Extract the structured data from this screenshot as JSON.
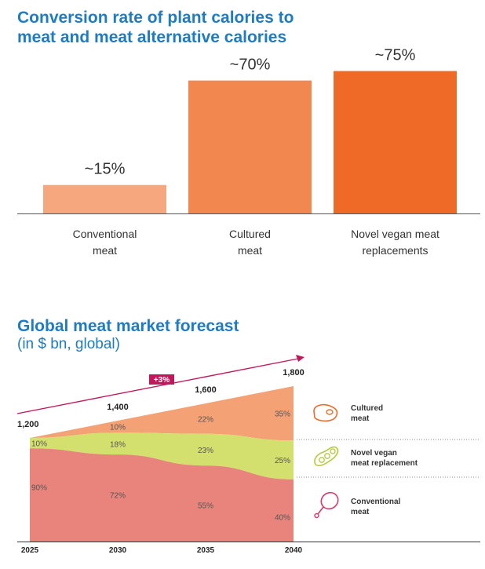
{
  "chart_data": [
    {
      "type": "bar",
      "title": "Conversion rate of plant calories to meat and meat alternative calories",
      "title_lines": [
        "Conversion rate of plant calories to",
        "meat and meat alternative calories"
      ],
      "categories": [
        "Conventional meat",
        "Cultured meat",
        "Novel vegan meat replacements"
      ],
      "category_lines": [
        [
          "Conventional",
          "meat"
        ],
        [
          "Cultured",
          "meat"
        ],
        [
          "Novel vegan meat",
          "replacements"
        ]
      ],
      "values": [
        15,
        70,
        75
      ],
      "labels": [
        "~15%",
        "~70%",
        "~75%"
      ],
      "colors": [
        "#f6a77e",
        "#f2874f",
        "#ef6a26"
      ],
      "ylim": [
        0,
        100
      ]
    },
    {
      "type": "area",
      "title": "Global meat market forecast",
      "subtitle": "(in $ bn, global)",
      "x": [
        "2025",
        "2030",
        "2035",
        "2040"
      ],
      "totals": [
        1200,
        1400,
        1600,
        1800
      ],
      "total_labels": [
        "1,200",
        "1,400",
        "1,600",
        "1,800"
      ],
      "growth_label": "+3%",
      "growth_color": "#c2185b",
      "series": [
        {
          "name": "Conventional meat",
          "legend_lines": [
            "Conventional",
            "meat"
          ],
          "icon": "drumstick-icon",
          "color": "#e8847c",
          "values": [
            90,
            72,
            55,
            40
          ],
          "labels": [
            "90%",
            "72%",
            "55%",
            "40%"
          ]
        },
        {
          "name": "Novel vegan meat replacement",
          "legend_lines": [
            "Novel vegan",
            "meat replacement"
          ],
          "icon": "soybean-icon",
          "color": "#d4e06e",
          "values": [
            10,
            18,
            23,
            25
          ],
          "labels": [
            "10%",
            "18%",
            "23%",
            "25%"
          ]
        },
        {
          "name": "Cultured meat",
          "legend_lines": [
            "Cultured",
            "meat"
          ],
          "icon": "steak-icon",
          "color": "#f4a275",
          "values": [
            0,
            10,
            22,
            35
          ],
          "labels": [
            "",
            "10%",
            "22%",
            "35%"
          ]
        }
      ]
    }
  ]
}
